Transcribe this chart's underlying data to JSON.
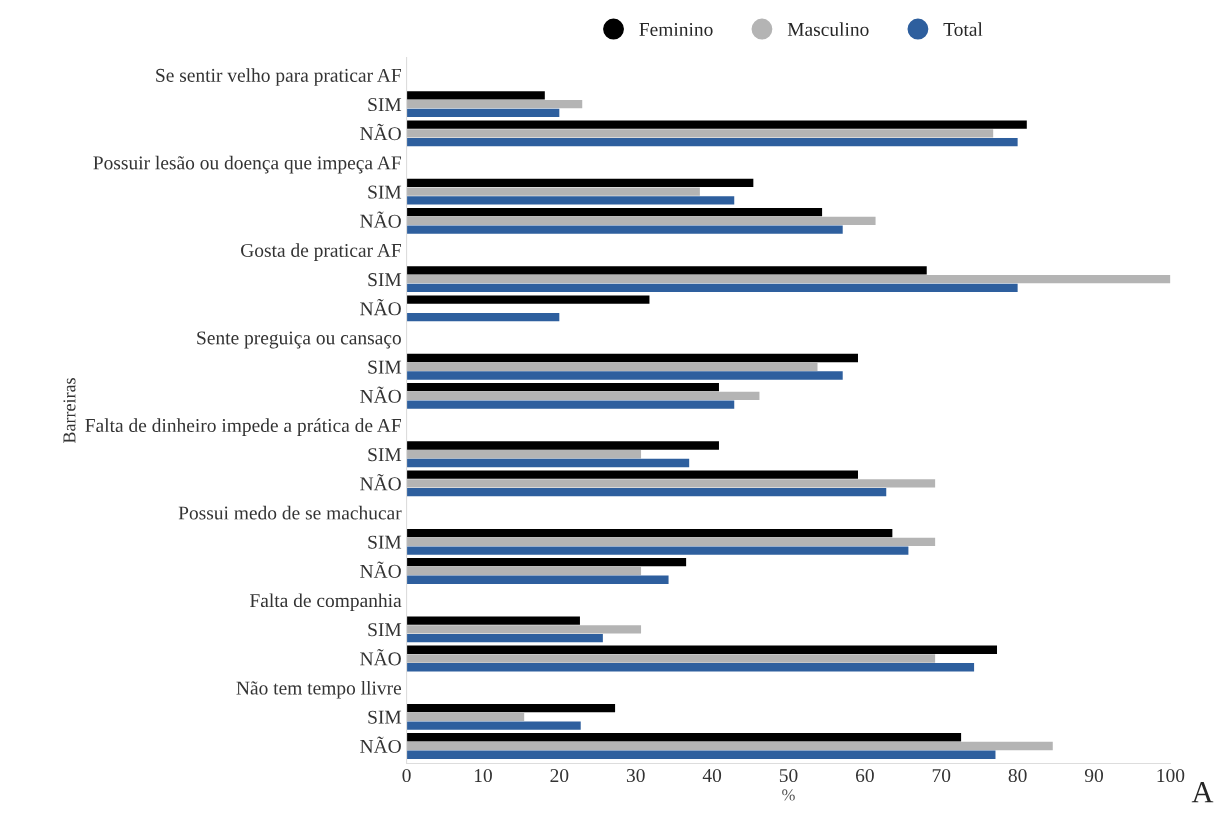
{
  "chart_data": {
    "type": "bar",
    "orientation": "horizontal",
    "categories": [
      "Se sentir velho para praticar AF",
      "SIM",
      "NÃO",
      "Possuir lesão ou doença que impeça AF",
      "SIM",
      "NÃO",
      "Gosta de praticar AF",
      "SIM",
      "NÃO",
      "Sente preguiça ou cansaço",
      "SIM",
      "NÃO",
      "Falta de dinheiro impede a prática de AF",
      "SIM",
      "NÃO",
      "Possui medo de se machucar",
      "SIM",
      "NÃO",
      "Falta de companhia",
      "SIM",
      "NÃO",
      "Não tem tempo llivre",
      "SIM",
      "NÃO"
    ],
    "series": [
      {
        "name": "Feminino",
        "color": "#000000",
        "values": [
          null,
          18.1,
          81.2,
          null,
          45.4,
          54.4,
          null,
          68.1,
          31.8,
          null,
          59.1,
          40.9,
          null,
          40.9,
          59.1,
          null,
          63.6,
          36.6,
          null,
          22.7,
          77.3,
          null,
          27.3,
          72.6
        ]
      },
      {
        "name": "Masculino",
        "color": "#b4b4b4",
        "values": [
          null,
          23.0,
          76.8,
          null,
          38.4,
          61.4,
          null,
          100,
          0,
          null,
          53.8,
          46.2,
          null,
          30.7,
          69.2,
          null,
          69.2,
          30.7,
          null,
          30.7,
          69.2,
          null,
          15.4,
          84.6
        ]
      },
      {
        "name": "Total",
        "color": "#2e5f9e",
        "values": [
          null,
          20.0,
          80.0,
          null,
          42.9,
          57.1,
          null,
          80.0,
          20.0,
          null,
          57.1,
          42.9,
          null,
          37.0,
          62.8,
          null,
          65.7,
          34.3,
          null,
          25.7,
          74.3,
          null,
          22.8,
          77.1
        ]
      }
    ],
    "xlim": [
      0,
      100
    ],
    "xticks": [
      0,
      10,
      20,
      30,
      40,
      50,
      60,
      70,
      80,
      90,
      100
    ],
    "xlabel": "%",
    "ylabel": "Barreiras",
    "legend": "top",
    "grid": false,
    "annotations": [
      "A"
    ]
  }
}
